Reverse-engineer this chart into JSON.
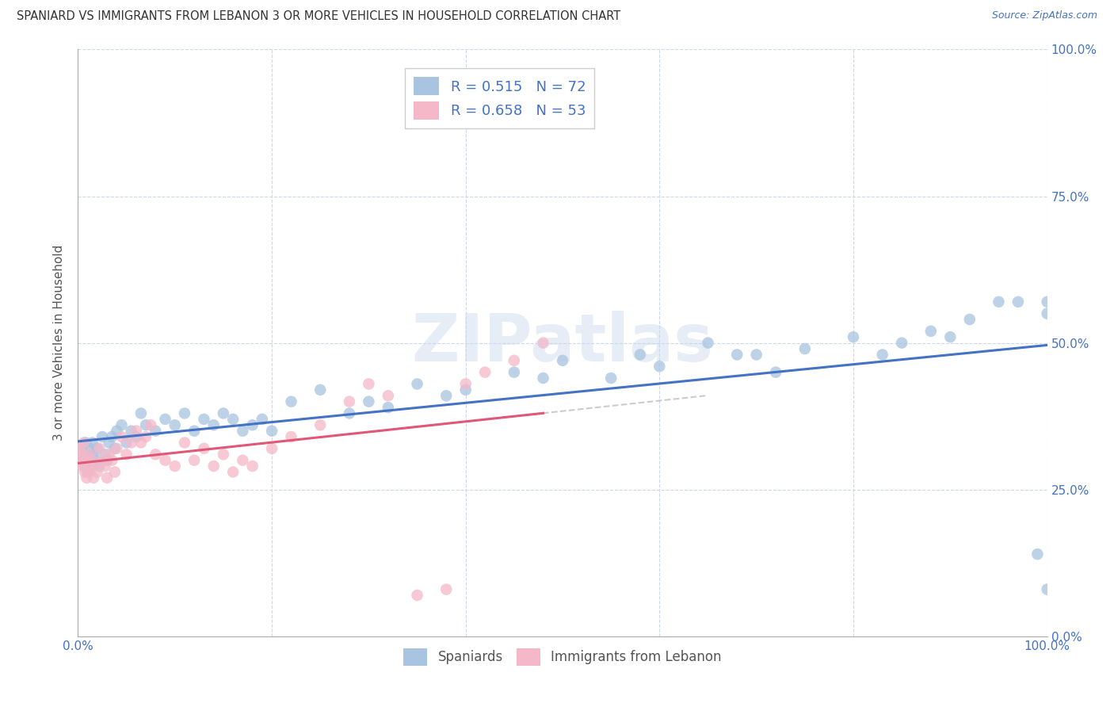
{
  "title": "SPANIARD VS IMMIGRANTS FROM LEBANON 3 OR MORE VEHICLES IN HOUSEHOLD CORRELATION CHART",
  "source": "Source: ZipAtlas.com",
  "spaniards_label": "Spaniards",
  "lebanon_label": "Immigrants from Lebanon",
  "R_spaniards": 0.515,
  "N_spaniards": 72,
  "R_lebanon": 0.658,
  "N_lebanon": 53,
  "spaniard_color": "#a8c4e0",
  "lebanon_color": "#f4b8c8",
  "spaniard_line_color": "#4472c4",
  "lebanon_line_color": "#e05878",
  "trendline_dash_color": "#c0c0c0",
  "background_color": "#ffffff",
  "grid_color": "#cdd8ea",
  "watermark": "ZIPatlas",
  "ylabel": "3 or more Vehicles in Household",
  "sp_x": [
    0.4,
    0.5,
    0.6,
    0.7,
    0.8,
    0.9,
    1.0,
    1.1,
    1.2,
    1.3,
    1.5,
    1.6,
    1.8,
    2.0,
    2.2,
    2.5,
    2.8,
    3.0,
    3.2,
    3.5,
    3.8,
    4.0,
    4.5,
    5.0,
    5.5,
    6.0,
    6.5,
    7.0,
    8.0,
    9.0,
    10.0,
    11.0,
    12.0,
    13.0,
    14.0,
    15.0,
    16.0,
    17.0,
    18.0,
    19.0,
    20.0,
    22.0,
    25.0,
    28.0,
    30.0,
    32.0,
    35.0,
    38.0,
    40.0,
    45.0,
    48.0,
    50.0,
    55.0,
    58.0,
    60.0,
    65.0,
    68.0,
    70.0,
    72.0,
    75.0,
    80.0,
    83.0,
    85.0,
    88.0,
    90.0,
    92.0,
    95.0,
    97.0,
    99.0,
    100.0,
    100.0,
    100.0
  ],
  "sp_y": [
    32,
    30,
    31,
    29,
    33,
    30,
    28,
    31,
    32,
    29,
    33,
    31,
    30,
    32,
    29,
    34,
    31,
    30,
    33,
    34,
    32,
    35,
    36,
    33,
    35,
    34,
    38,
    36,
    35,
    37,
    36,
    38,
    35,
    37,
    36,
    38,
    37,
    35,
    36,
    37,
    35,
    40,
    42,
    38,
    40,
    39,
    43,
    41,
    42,
    45,
    44,
    47,
    44,
    48,
    46,
    50,
    48,
    48,
    45,
    49,
    51,
    48,
    50,
    52,
    51,
    54,
    57,
    57,
    14,
    8,
    57,
    55
  ],
  "lb_x": [
    0.2,
    0.3,
    0.4,
    0.5,
    0.6,
    0.7,
    0.8,
    0.9,
    1.0,
    1.1,
    1.2,
    1.4,
    1.6,
    1.8,
    2.0,
    2.2,
    2.5,
    2.8,
    3.0,
    3.2,
    3.5,
    3.8,
    4.0,
    4.5,
    5.0,
    5.5,
    6.0,
    6.5,
    7.0,
    7.5,
    8.0,
    9.0,
    10.0,
    11.0,
    12.0,
    13.0,
    14.0,
    15.0,
    16.0,
    17.0,
    18.0,
    20.0,
    22.0,
    25.0,
    28.0,
    30.0,
    32.0,
    35.0,
    38.0,
    40.0,
    42.0,
    45.0,
    48.0
  ],
  "lb_y": [
    32,
    30,
    31,
    29,
    33,
    28,
    30,
    27,
    29,
    31,
    28,
    30,
    27,
    29,
    28,
    32,
    30,
    29,
    27,
    31,
    30,
    28,
    32,
    34,
    31,
    33,
    35,
    33,
    34,
    36,
    31,
    30,
    29,
    33,
    30,
    32,
    29,
    31,
    28,
    30,
    29,
    32,
    34,
    36,
    40,
    43,
    41,
    7,
    8,
    43,
    45,
    47,
    50
  ]
}
